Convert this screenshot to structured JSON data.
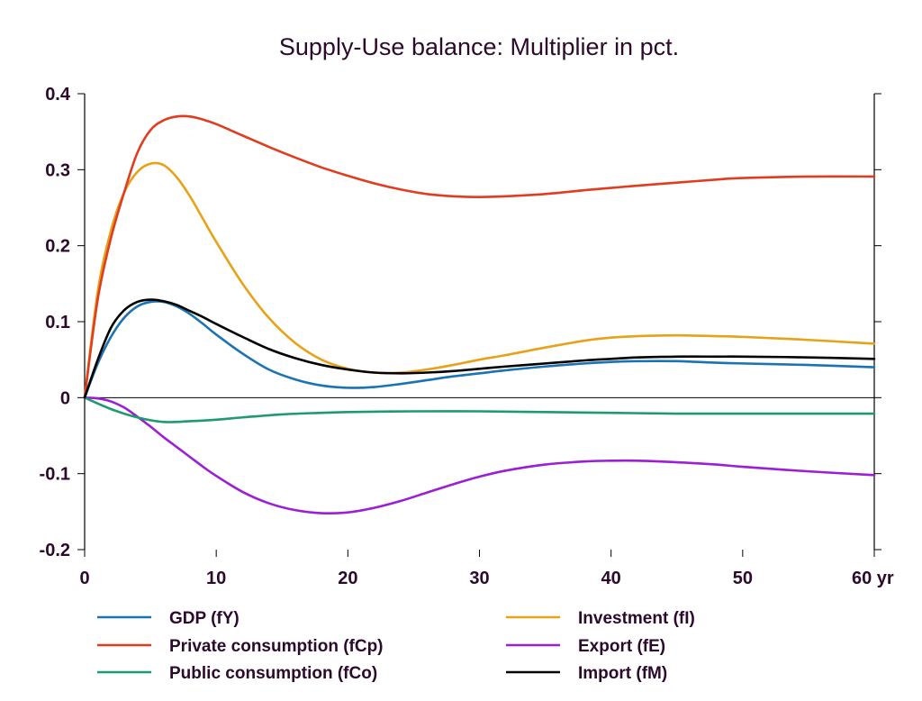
{
  "chart_data": {
    "type": "line",
    "title": "Supply-Use balance: Multiplier in pct.",
    "x_unit_label": "yr",
    "xlim": [
      0,
      60
    ],
    "ylim": [
      -0.2,
      0.4
    ],
    "x_ticks": [
      0,
      10,
      20,
      30,
      40,
      50,
      60
    ],
    "x_tick_labels": [
      "0",
      "10",
      "20",
      "30",
      "40",
      "50",
      "60 yr"
    ],
    "y_ticks": [
      -0.2,
      -0.1,
      0,
      0.1,
      0.2,
      0.3,
      0.4
    ],
    "y_tick_labels": [
      "-0.2",
      "-0.1",
      "0",
      "0.1",
      "0.2",
      "0.3",
      "0.4"
    ],
    "grid": false,
    "zero_line": true,
    "legend_position": "bottom",
    "series": [
      {
        "name": "GDP (fY)",
        "color": "#1a74b3",
        "x": [
          0,
          1,
          2,
          3,
          4,
          5,
          6,
          7,
          8,
          9,
          10,
          12,
          14,
          16,
          18,
          20,
          22,
          24,
          26,
          28,
          30,
          32,
          35,
          38,
          40,
          42,
          45,
          48,
          50,
          55,
          60
        ],
        "y": [
          0,
          0.045,
          0.08,
          0.105,
          0.12,
          0.126,
          0.126,
          0.12,
          0.11,
          0.097,
          0.083,
          0.058,
          0.037,
          0.024,
          0.016,
          0.013,
          0.014,
          0.018,
          0.023,
          0.028,
          0.032,
          0.036,
          0.041,
          0.045,
          0.047,
          0.048,
          0.048,
          0.046,
          0.045,
          0.043,
          0.04
        ]
      },
      {
        "name": "Investment (fI)",
        "color": "#e6a218",
        "x": [
          0,
          1,
          2,
          3,
          4,
          5,
          6,
          7,
          8,
          9,
          10,
          12,
          14,
          16,
          18,
          20,
          22,
          24,
          26,
          28,
          30,
          32,
          35,
          38,
          40,
          42,
          45,
          48,
          50,
          55,
          60
        ],
        "y": [
          0,
          0.14,
          0.22,
          0.27,
          0.297,
          0.308,
          0.306,
          0.29,
          0.265,
          0.235,
          0.205,
          0.15,
          0.105,
          0.072,
          0.05,
          0.038,
          0.033,
          0.033,
          0.037,
          0.043,
          0.05,
          0.056,
          0.066,
          0.075,
          0.079,
          0.081,
          0.082,
          0.081,
          0.08,
          0.076,
          0.071
        ]
      },
      {
        "name": "Private consumption (fCp)",
        "color": "#e03c1f",
        "x": [
          0,
          1,
          2,
          3,
          4,
          5,
          6,
          7,
          8,
          9,
          10,
          12,
          14,
          16,
          18,
          20,
          22,
          24,
          26,
          28,
          30,
          32,
          35,
          38,
          40,
          42,
          45,
          48,
          50,
          55,
          60
        ],
        "y": [
          0,
          0.13,
          0.21,
          0.27,
          0.322,
          0.352,
          0.365,
          0.37,
          0.37,
          0.366,
          0.36,
          0.345,
          0.33,
          0.316,
          0.303,
          0.292,
          0.282,
          0.274,
          0.268,
          0.265,
          0.264,
          0.265,
          0.268,
          0.273,
          0.276,
          0.279,
          0.283,
          0.287,
          0.289,
          0.291,
          0.291
        ]
      },
      {
        "name": "Export (fE)",
        "color": "#9a1fd6",
        "x": [
          0,
          1,
          2,
          3,
          4,
          5,
          6,
          7,
          8,
          9,
          10,
          12,
          14,
          16,
          18,
          20,
          22,
          24,
          26,
          28,
          30,
          32,
          35,
          38,
          40,
          42,
          45,
          48,
          50,
          55,
          60
        ],
        "y": [
          0,
          -0.001,
          -0.005,
          -0.013,
          -0.025,
          -0.038,
          -0.052,
          -0.065,
          -0.078,
          -0.091,
          -0.103,
          -0.124,
          -0.139,
          -0.148,
          -0.152,
          -0.151,
          -0.145,
          -0.136,
          -0.125,
          -0.114,
          -0.104,
          -0.096,
          -0.088,
          -0.084,
          -0.083,
          -0.083,
          -0.085,
          -0.088,
          -0.091,
          -0.097,
          -0.102
        ]
      },
      {
        "name": "Public consumption (fCo)",
        "color": "#1f9a6e",
        "x": [
          0,
          2,
          4,
          6,
          8,
          10,
          12,
          15,
          18,
          20,
          25,
          30,
          35,
          40,
          45,
          50,
          55,
          60
        ],
        "y": [
          0,
          -0.015,
          -0.026,
          -0.032,
          -0.031,
          -0.029,
          -0.026,
          -0.022,
          -0.02,
          -0.019,
          -0.018,
          -0.018,
          -0.019,
          -0.02,
          -0.021,
          -0.021,
          -0.021,
          -0.021
        ]
      },
      {
        "name": "Import (fM)",
        "color": "#000000",
        "x": [
          0,
          1,
          2,
          3,
          4,
          5,
          6,
          7,
          8,
          9,
          10,
          12,
          14,
          16,
          18,
          20,
          22,
          24,
          26,
          28,
          30,
          32,
          35,
          38,
          40,
          42,
          45,
          48,
          50,
          55,
          60
        ],
        "y": [
          0,
          0.05,
          0.092,
          0.115,
          0.126,
          0.129,
          0.127,
          0.122,
          0.114,
          0.106,
          0.097,
          0.08,
          0.064,
          0.052,
          0.043,
          0.037,
          0.033,
          0.032,
          0.033,
          0.035,
          0.038,
          0.041,
          0.045,
          0.049,
          0.051,
          0.053,
          0.054,
          0.054,
          0.054,
          0.053,
          0.051
        ]
      }
    ],
    "legend_order": [
      "GDP (fY)",
      "Investment (fI)",
      "Private consumption (fCp)",
      "Export (fE)",
      "Public consumption (fCo)",
      "Import (fM)"
    ]
  }
}
